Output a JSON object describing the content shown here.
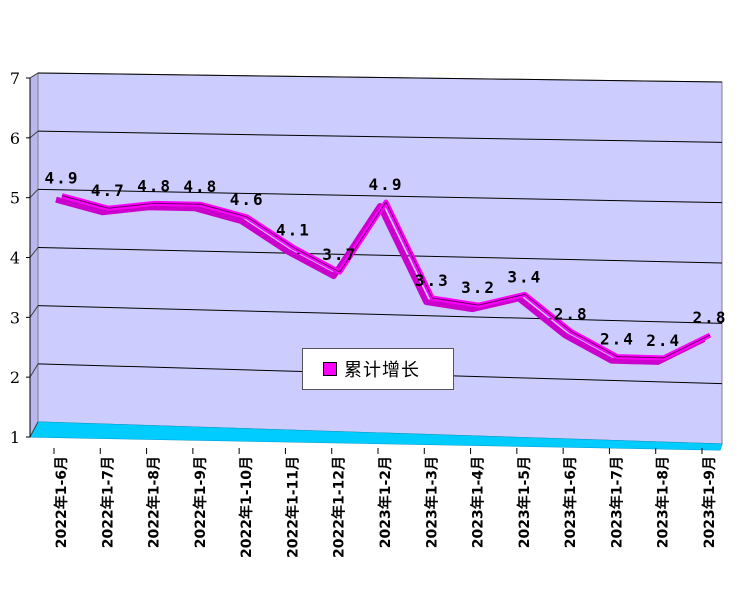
{
  "chart_data": {
    "type": "line",
    "categories": [
      "2022年1-6月",
      "2022年1-7月",
      "2022年1-8月",
      "2022年1-9月",
      "2022年1-10月",
      "2022年1-11月",
      "2022年1-12月",
      "2023年1-2月",
      "2023年1-3月",
      "2023年1-4月",
      "2023年1-5月",
      "2023年1-6月",
      "2023年1-7月",
      "2023年1-8月",
      "2023年1-9月"
    ],
    "series": [
      {
        "name": "累计增长",
        "values": [
          4.9,
          4.7,
          4.8,
          4.8,
          4.6,
          4.1,
          3.7,
          4.9,
          3.3,
          3.2,
          3.4,
          2.8,
          2.4,
          2.4,
          2.8
        ],
        "labels": [
          "4.9",
          "4.7",
          "4.8",
          "4.8",
          "4.6",
          "4.1",
          "3.7",
          "4.9",
          "3.3",
          "3.2",
          "3.4",
          "2.8",
          "2.4",
          "2.4",
          "2.8"
        ]
      }
    ],
    "ylim": [
      1,
      7
    ],
    "yticks": [
      "1",
      "2",
      "3",
      "4",
      "5",
      "6",
      "7"
    ],
    "grid": true,
    "legend": "center",
    "colors": {
      "line": "#ff00ff",
      "plot_bg": "#ccccff",
      "floor": "#00ccff",
      "grid": "#000000"
    }
  }
}
